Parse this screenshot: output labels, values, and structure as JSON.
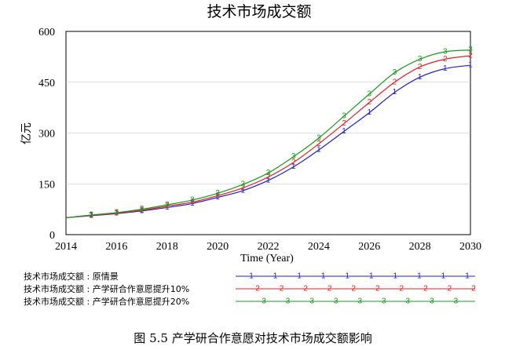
{
  "chart_data": {
    "type": "line",
    "title": "技术市场成交额",
    "xlabel": "Time (Year)",
    "ylabel": "亿元",
    "xlim": [
      2014,
      2030
    ],
    "ylim": [
      0,
      600
    ],
    "x_ticks": [
      "2014",
      "2016",
      "2018",
      "2020",
      "2022",
      "2024",
      "2026",
      "2028",
      "2030"
    ],
    "y_ticks": [
      "0",
      "150",
      "300",
      "450",
      "600"
    ],
    "x": [
      2014,
      2015,
      2016,
      2017,
      2018,
      2019,
      2020,
      2021,
      2022,
      2023,
      2024,
      2025,
      2026,
      2027,
      2028,
      2029,
      2030
    ],
    "series": [
      {
        "name": "技术市场成交额 : 原情景",
        "marker": "1",
        "color": "#1f1fd0",
        "values": [
          50,
          56,
          62,
          70,
          80,
          92,
          110,
          130,
          160,
          200,
          250,
          305,
          360,
          420,
          465,
          490,
          500
        ]
      },
      {
        "name": "技术市场成交额 : 产学研合作意愿提升10%",
        "marker": "2",
        "color": "#e02020",
        "values": [
          50,
          57,
          63,
          72,
          84,
          96,
          115,
          138,
          170,
          213,
          268,
          328,
          390,
          450,
          495,
          518,
          528
        ]
      },
      {
        "name": "技术市场成交额 : 产学研合作意愿提升20%",
        "marker": "3",
        "color": "#1a9a1a",
        "values": [
          50,
          58,
          65,
          75,
          88,
          102,
          122,
          148,
          182,
          230,
          285,
          350,
          415,
          478,
          518,
          540,
          545
        ]
      }
    ]
  },
  "caption": "图 5.5  产学研合作意愿对技术市场成交额影响"
}
